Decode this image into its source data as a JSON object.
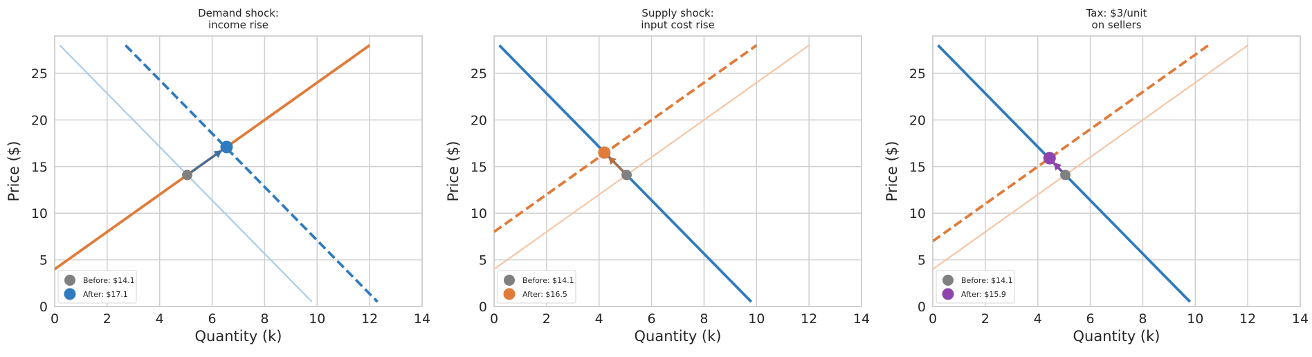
{
  "chart_data": [
    {
      "type": "line",
      "title": "Demand shock:\nincome rise",
      "xlabel": "Quantity (k)",
      "ylabel": "Price ($)",
      "xlim": [
        0,
        14
      ],
      "ylim": [
        0,
        29
      ],
      "xticks": [
        0,
        2,
        4,
        6,
        8,
        10,
        12,
        14
      ],
      "yticks": [
        0,
        5,
        10,
        15,
        20,
        25
      ],
      "grid": true,
      "legend_position": "lower-left",
      "series": [
        {
          "role": "demand-original",
          "color": "#a9cce8",
          "style": "solid-faint",
          "x": [
            0.2,
            9.8
          ],
          "y": [
            28,
            0.5
          ]
        },
        {
          "role": "demand-shifted",
          "color": "#2f7bbf",
          "style": "dashed",
          "x": [
            2.7,
            12.3
          ],
          "y": [
            28,
            0.5
          ]
        },
        {
          "role": "supply",
          "color": "#e07b39",
          "style": "solid",
          "x": [
            0,
            12
          ],
          "y": [
            4,
            28
          ]
        }
      ],
      "equilibrium_before": {
        "x": 5.05,
        "y": 14.1,
        "color": "#808080"
      },
      "equilibrium_after": {
        "x": 6.55,
        "y": 17.1,
        "color": "#2f7bbf"
      },
      "arrow_color": "#3b6fa6",
      "legend": [
        "Before: $14.1",
        "After: $17.1"
      ]
    },
    {
      "type": "line",
      "title": "Supply shock:\ninput cost rise",
      "xlabel": "Quantity (k)",
      "ylabel": "Price ($)",
      "xlim": [
        0,
        14
      ],
      "ylim": [
        0,
        29
      ],
      "xticks": [
        0,
        2,
        4,
        6,
        8,
        10,
        12,
        14
      ],
      "yticks": [
        0,
        5,
        10,
        15,
        20,
        25
      ],
      "grid": true,
      "legend_position": "lower-left",
      "series": [
        {
          "role": "demand",
          "color": "#2f7bbf",
          "style": "solid",
          "x": [
            0.2,
            9.8
          ],
          "y": [
            28,
            0.5
          ]
        },
        {
          "role": "supply-original",
          "color": "#f5c6a5",
          "style": "solid-faint",
          "x": [
            0,
            12
          ],
          "y": [
            4,
            28
          ]
        },
        {
          "role": "supply-shifted",
          "color": "#e07b39",
          "style": "dashed",
          "x": [
            0,
            10
          ],
          "y": [
            8,
            28
          ]
        }
      ],
      "equilibrium_before": {
        "x": 5.05,
        "y": 14.1,
        "color": "#808080"
      },
      "equilibrium_after": {
        "x": 4.2,
        "y": 16.5,
        "color": "#e07b39"
      },
      "arrow_color": "#b8703e",
      "legend": [
        "Before: $14.1",
        "After: $16.5"
      ]
    },
    {
      "type": "line",
      "title": "Tax: $3/unit\non sellers",
      "xlabel": "Quantity (k)",
      "ylabel": "Price ($)",
      "xlim": [
        0,
        14
      ],
      "ylim": [
        0,
        29
      ],
      "xticks": [
        0,
        2,
        4,
        6,
        8,
        10,
        12,
        14
      ],
      "yticks": [
        0,
        5,
        10,
        15,
        20,
        25
      ],
      "grid": true,
      "legend_position": "lower-left",
      "series": [
        {
          "role": "demand",
          "color": "#2f7bbf",
          "style": "solid",
          "x": [
            0.2,
            9.8
          ],
          "y": [
            28,
            0.5
          ]
        },
        {
          "role": "supply-original",
          "color": "#f5c6a5",
          "style": "solid-faint",
          "x": [
            0,
            12
          ],
          "y": [
            4,
            28
          ]
        },
        {
          "role": "supply-with-tax",
          "color": "#e07b39",
          "style": "dashed",
          "x": [
            0,
            10.5
          ],
          "y": [
            7,
            28
          ]
        }
      ],
      "equilibrium_before": {
        "x": 5.05,
        "y": 14.1,
        "color": "#808080"
      },
      "equilibrium_after": {
        "x": 4.45,
        "y": 15.9,
        "color": "#8e44ad"
      },
      "arrow_color": "#8e44ad",
      "legend": [
        "Before: $14.1",
        "After: $15.9"
      ]
    }
  ]
}
